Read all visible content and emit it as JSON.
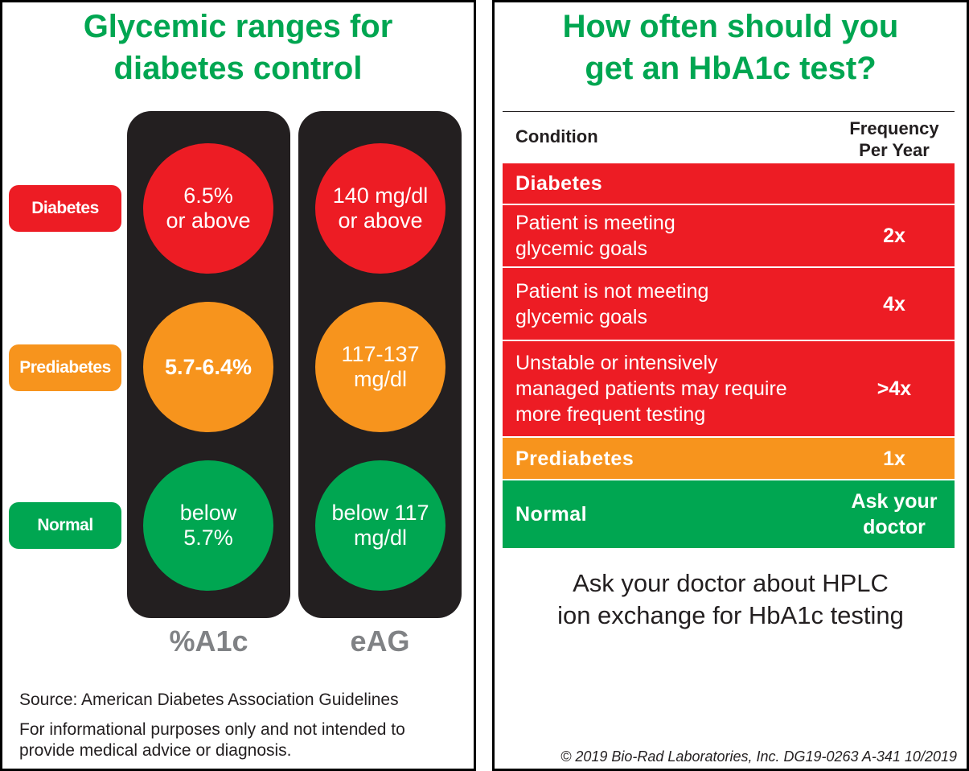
{
  "left": {
    "title_line1": "Glycemic ranges for",
    "title_line2": "diabetes control",
    "categories": [
      "Diabetes",
      "Prediabetes",
      "Normal"
    ],
    "a1c": {
      "label": "%A1c",
      "values": [
        [
          "6.5%",
          "or above"
        ],
        [
          "5.7-6.4%",
          ""
        ],
        [
          "below",
          "5.7%"
        ]
      ]
    },
    "eag": {
      "label": "eAG",
      "values": [
        [
          "140 mg/dl",
          "or above"
        ],
        [
          "117-137",
          "mg/dl"
        ],
        [
          "below 117",
          "mg/dl"
        ]
      ]
    },
    "source": "Source: American Diabetes Association Guidelines",
    "disclaimer_line1": "For informational purposes only and not intended to",
    "disclaimer_line2": "provide medical advice or diagnosis.",
    "colors": {
      "diabetes": "#ed1c24",
      "prediabetes": "#f7941d",
      "normal": "#00a651",
      "title": "#00a651",
      "tower": "#231f20"
    }
  },
  "right": {
    "title_line1": "How often should you",
    "title_line2": "get an HbA1c test?",
    "table": {
      "header": {
        "condition": "Condition",
        "frequency_line1": "Frequency",
        "frequency_line2": "Per Year"
      },
      "rows": [
        {
          "condition": [
            "Diabetes"
          ],
          "frequency": ""
        },
        {
          "condition": [
            "Patient is meeting",
            "glycemic goals"
          ],
          "frequency": "2x"
        },
        {
          "condition": [
            "Patient is not meeting",
            "glycemic goals"
          ],
          "frequency": "4x"
        },
        {
          "condition": [
            "Unstable or intensively",
            "managed patients may require",
            "more frequent testing"
          ],
          "frequency": ">4x"
        },
        {
          "condition": [
            "Prediabetes"
          ],
          "frequency": "1x"
        },
        {
          "condition": [
            "Normal"
          ],
          "frequency_line1": "Ask your",
          "frequency_line2": "doctor"
        }
      ]
    },
    "cta_line1": "Ask your doctor about HPLC",
    "cta_line2": "ion exchange for HbA1c testing",
    "copyright": "© 2019 Bio-Rad Laboratories, Inc. DG19-0263  A-341  10/2019"
  }
}
